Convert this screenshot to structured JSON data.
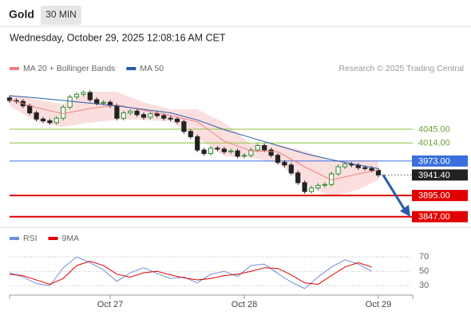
{
  "header": {
    "symbol": "Gold",
    "timeframe": "30 MIN",
    "date": "Wednesday, October 29, 2025 12:08:16 AM CET"
  },
  "chart_data": [
    {
      "type": "candlestick",
      "copyright": "Research © 2025 Trading Central",
      "ylim": [
        3823,
        4148
      ],
      "up_color": "#2e8b2e",
      "down_color": "#222222",
      "candles": {
        "open": [
          4116,
          4110,
          4108,
          4098,
          4082,
          4068,
          4064,
          4060,
          4070,
          4095,
          4118,
          4124,
          4128,
          4112,
          4104,
          4106,
          4098,
          4070,
          4082,
          4086,
          4078,
          4072,
          4080,
          4076,
          4070,
          4068,
          4062,
          4040,
          4028,
          3998,
          3990,
          4002,
          4000,
          3994,
          3996,
          3984,
          3986,
          3998,
          4008,
          3998,
          3986,
          3970,
          3964,
          3946,
          3924,
          3904,
          3912,
          3918,
          3920,
          3944,
          3960,
          3966,
          3964,
          3958,
          3956,
          3952
        ],
        "high": [
          4121,
          4115,
          4113,
          4103,
          4087,
          4073,
          4069,
          4075,
          4100,
          4123,
          4129,
          4133,
          4133,
          4117,
          4111,
          4111,
          4103,
          4087,
          4091,
          4091,
          4083,
          4085,
          4085,
          4081,
          4075,
          4073,
          4067,
          4045,
          4033,
          4003,
          4007,
          4007,
          4005,
          4001,
          4001,
          3991,
          4003,
          4013,
          4013,
          4003,
          3991,
          3975,
          3969,
          3951,
          3929,
          3917,
          3923,
          3925,
          3949,
          3965,
          3971,
          3971,
          3969,
          3963,
          3961,
          3957
        ],
        "low": [
          4105,
          4103,
          4093,
          4077,
          4063,
          4059,
          4055,
          4055,
          4065,
          4090,
          4113,
          4119,
          4107,
          4099,
          4099,
          4093,
          4065,
          4065,
          4077,
          4073,
          4067,
          4067,
          4071,
          4065,
          4063,
          4057,
          4035,
          4023,
          3993,
          3985,
          3985,
          3995,
          3989,
          3989,
          3979,
          3979,
          3981,
          3993,
          3993,
          3981,
          3965,
          3959,
          3941,
          3919,
          3899,
          3899,
          3907,
          3913,
          3915,
          3939,
          3955,
          3959,
          3953,
          3951,
          3947,
          3936.4
        ],
        "close": [
          4110,
          4108,
          4098,
          4082,
          4068,
          4064,
          4060,
          4070,
          4095,
          4118,
          4124,
          4128,
          4112,
          4104,
          4106,
          4098,
          4070,
          4082,
          4086,
          4078,
          4072,
          4080,
          4076,
          4070,
          4068,
          4062,
          4040,
          4028,
          3998,
          3990,
          4002,
          4000,
          3994,
          3996,
          3984,
          3986,
          3998,
          4008,
          3998,
          3986,
          3970,
          3964,
          3946,
          3924,
          3904,
          3912,
          3918,
          3920,
          3944,
          3960,
          3966,
          3964,
          3958,
          3956,
          3952,
          3941.4
        ]
      },
      "ma_index": [
        0,
        4,
        8,
        12,
        16,
        20,
        24,
        28,
        32,
        36,
        40,
        44,
        48,
        52,
        55
      ],
      "series": [
        {
          "name": "MA 20 + Bollinger Bands",
          "color": "#f08080",
          "values": [
            4112,
            4094,
            4080,
            4092,
            4100,
            4088,
            4076,
            4062,
            4018,
            3996,
            3994,
            3960,
            3930,
            3944,
            3952
          ],
          "upper": [
            4124,
            4112,
            4102,
            4130,
            4130,
            4106,
            4090,
            4090,
            4060,
            4012,
            4010,
            3996,
            3972,
            3976,
            3972
          ],
          "lower": [
            4098,
            4062,
            4050,
            4060,
            4066,
            4066,
            4062,
            4026,
            3984,
            3980,
            3968,
            3920,
            3892,
            3908,
            3930
          ]
        },
        {
          "name": "MA 50",
          "color": "#2a5caa",
          "values": [
            4121,
            4116,
            4110,
            4104,
            4098,
            4090,
            4082,
            4066,
            4044,
            4026,
            4008,
            3990,
            3976,
            3964,
            3956
          ]
        }
      ],
      "levels": [
        {
          "value": 4045,
          "label": "4045.00",
          "color": "#8cc63f",
          "boxed": false
        },
        {
          "value": 4014,
          "label": "4014.00",
          "color": "#8cc63f",
          "boxed": false
        },
        {
          "value": 3973,
          "label": "3973.00",
          "color": "#3b6fe0",
          "boxed": true
        },
        {
          "value": 3895,
          "label": "3895.00",
          "color": "#e00000",
          "boxed": true
        },
        {
          "value": 3847,
          "label": "3847.00",
          "color": "#e00000",
          "boxed": true
        }
      ],
      "last": {
        "value": 3941.4,
        "label": "3941.40",
        "color": "#222222"
      },
      "x_labels": [
        "Oct 27",
        "Oct 28",
        "Oct 29"
      ],
      "x_label_index": [
        15,
        35,
        55
      ]
    },
    {
      "type": "line",
      "x": [
        0,
        2,
        4,
        6,
        8,
        10,
        12,
        14,
        16,
        18,
        20,
        22,
        24,
        26,
        28,
        30,
        32,
        34,
        36,
        38,
        40,
        42,
        44,
        46,
        48,
        50,
        52,
        54
      ],
      "ylim": [
        17,
        89
      ],
      "yticks": [
        30,
        50,
        70
      ],
      "grid": true,
      "series": [
        {
          "name": "RSI",
          "color": "#6f8fd8",
          "values": [
            48,
            42,
            33,
            30,
            55,
            70,
            62,
            52,
            36,
            48,
            55,
            47,
            40,
            42,
            34,
            46,
            50,
            43,
            58,
            60,
            47,
            35,
            26,
            42,
            56,
            66,
            60,
            50
          ]
        },
        {
          "name": "9MA",
          "color": "#e00000",
          "values": [
            46,
            44,
            38,
            32,
            40,
            58,
            64,
            58,
            46,
            42,
            48,
            50,
            45,
            41,
            38,
            40,
            44,
            46,
            50,
            55,
            54,
            45,
            34,
            32,
            44,
            56,
            62,
            56
          ]
        }
      ]
    }
  ]
}
